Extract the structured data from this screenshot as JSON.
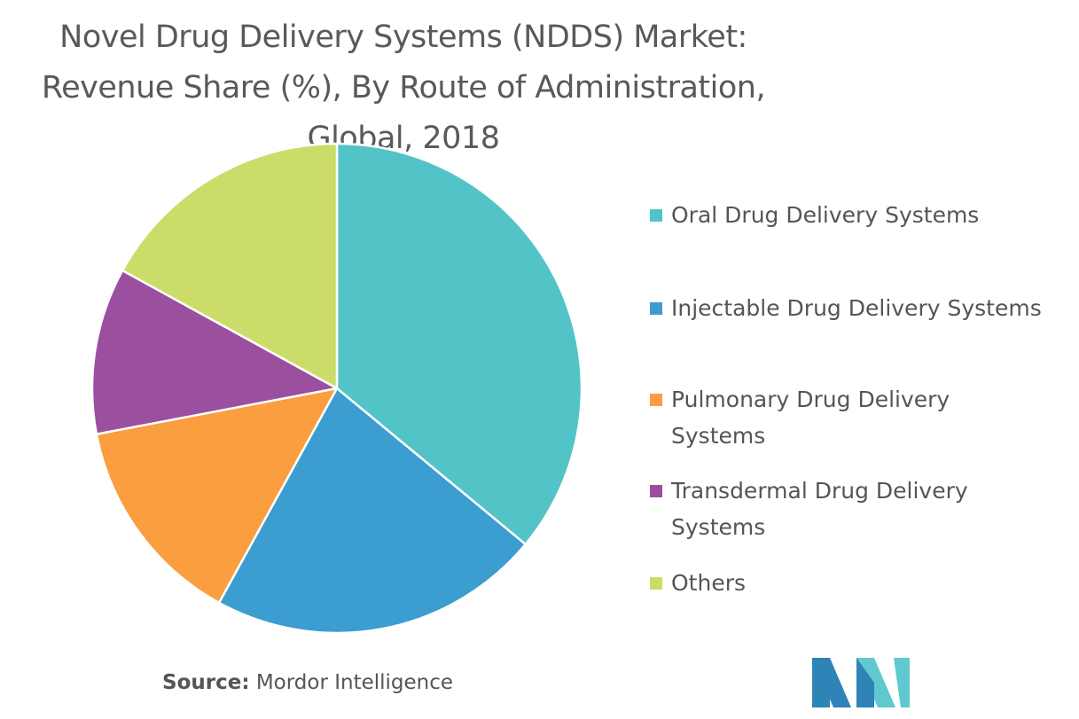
{
  "title_lines": [
    "Novel Drug Delivery Systems (NDDS) Market:",
    "Revenue Share (%), By Route of Administration,",
    "Global, 2018"
  ],
  "source": {
    "label": "Source:",
    "text": " Mordor Intelligence"
  },
  "chart_data": {
    "type": "pie",
    "title": "Novel Drug Delivery Systems (NDDS) Market: Revenue Share (%), By Route of Administration, Global, 2018",
    "start_angle": "12 o'clock, clockwise",
    "legend_position": "right",
    "categories": [
      "Oral Drug Delivery Systems",
      "Injectable Drug Delivery Systems",
      "Pulmonary Drug Delivery Systems",
      "Transdermal Drug Delivery Systems",
      "Others"
    ],
    "values": [
      36,
      22,
      14,
      11,
      17
    ],
    "colors": [
      "#52C4C8",
      "#3B9DD0",
      "#FA9E40",
      "#9B4F9F",
      "#CCDC68"
    ]
  }
}
